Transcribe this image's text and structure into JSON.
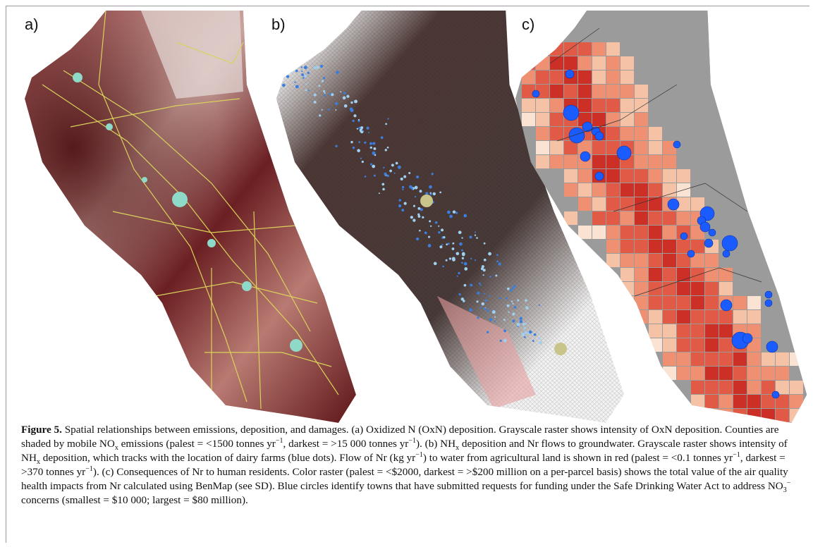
{
  "figure": {
    "panels": [
      "a)",
      "b)",
      "c)"
    ],
    "caption": {
      "label": "Figure 5.",
      "parts": [
        " Spatial relationships between emissions, deposition, and damages. (a) Oxidized N (OxN) deposition. Grayscale raster shows intensity of OxN deposition. Counties are shaded by mobile NO",
        "x",
        " emissions (palest = <1500 tonnes yr",
        "−1",
        ", darkest = >15 000 tonnes yr",
        "−1",
        "). (b) NH",
        "x",
        " deposition and Nr flows to groundwater. Grayscale raster shows intensity of NH",
        "x",
        " deposition, which tracks with the location of dairy farms (blue dots). Flow of Nr (kg yr",
        "−1",
        ") to water from agricultural land is shown in red (palest = <0.1 tonnes yr",
        "−1",
        ", darkest = >370 tonnes yr",
        "−1",
        "). (c) Consequences of Nr to human residents. Color raster (palest = <$2000, darkest = >$200 million on a per-parcel basis) shows the total value of the air quality health impacts from Nr calculated using BenMap (see SD). Blue circles identify towns that have submitted requests for funding under the Safe Drinking Water Act to address NO",
        "3",
        "−",
        " concerns (smallest = $10 000; largest = $80 million)."
      ]
    }
  }
}
